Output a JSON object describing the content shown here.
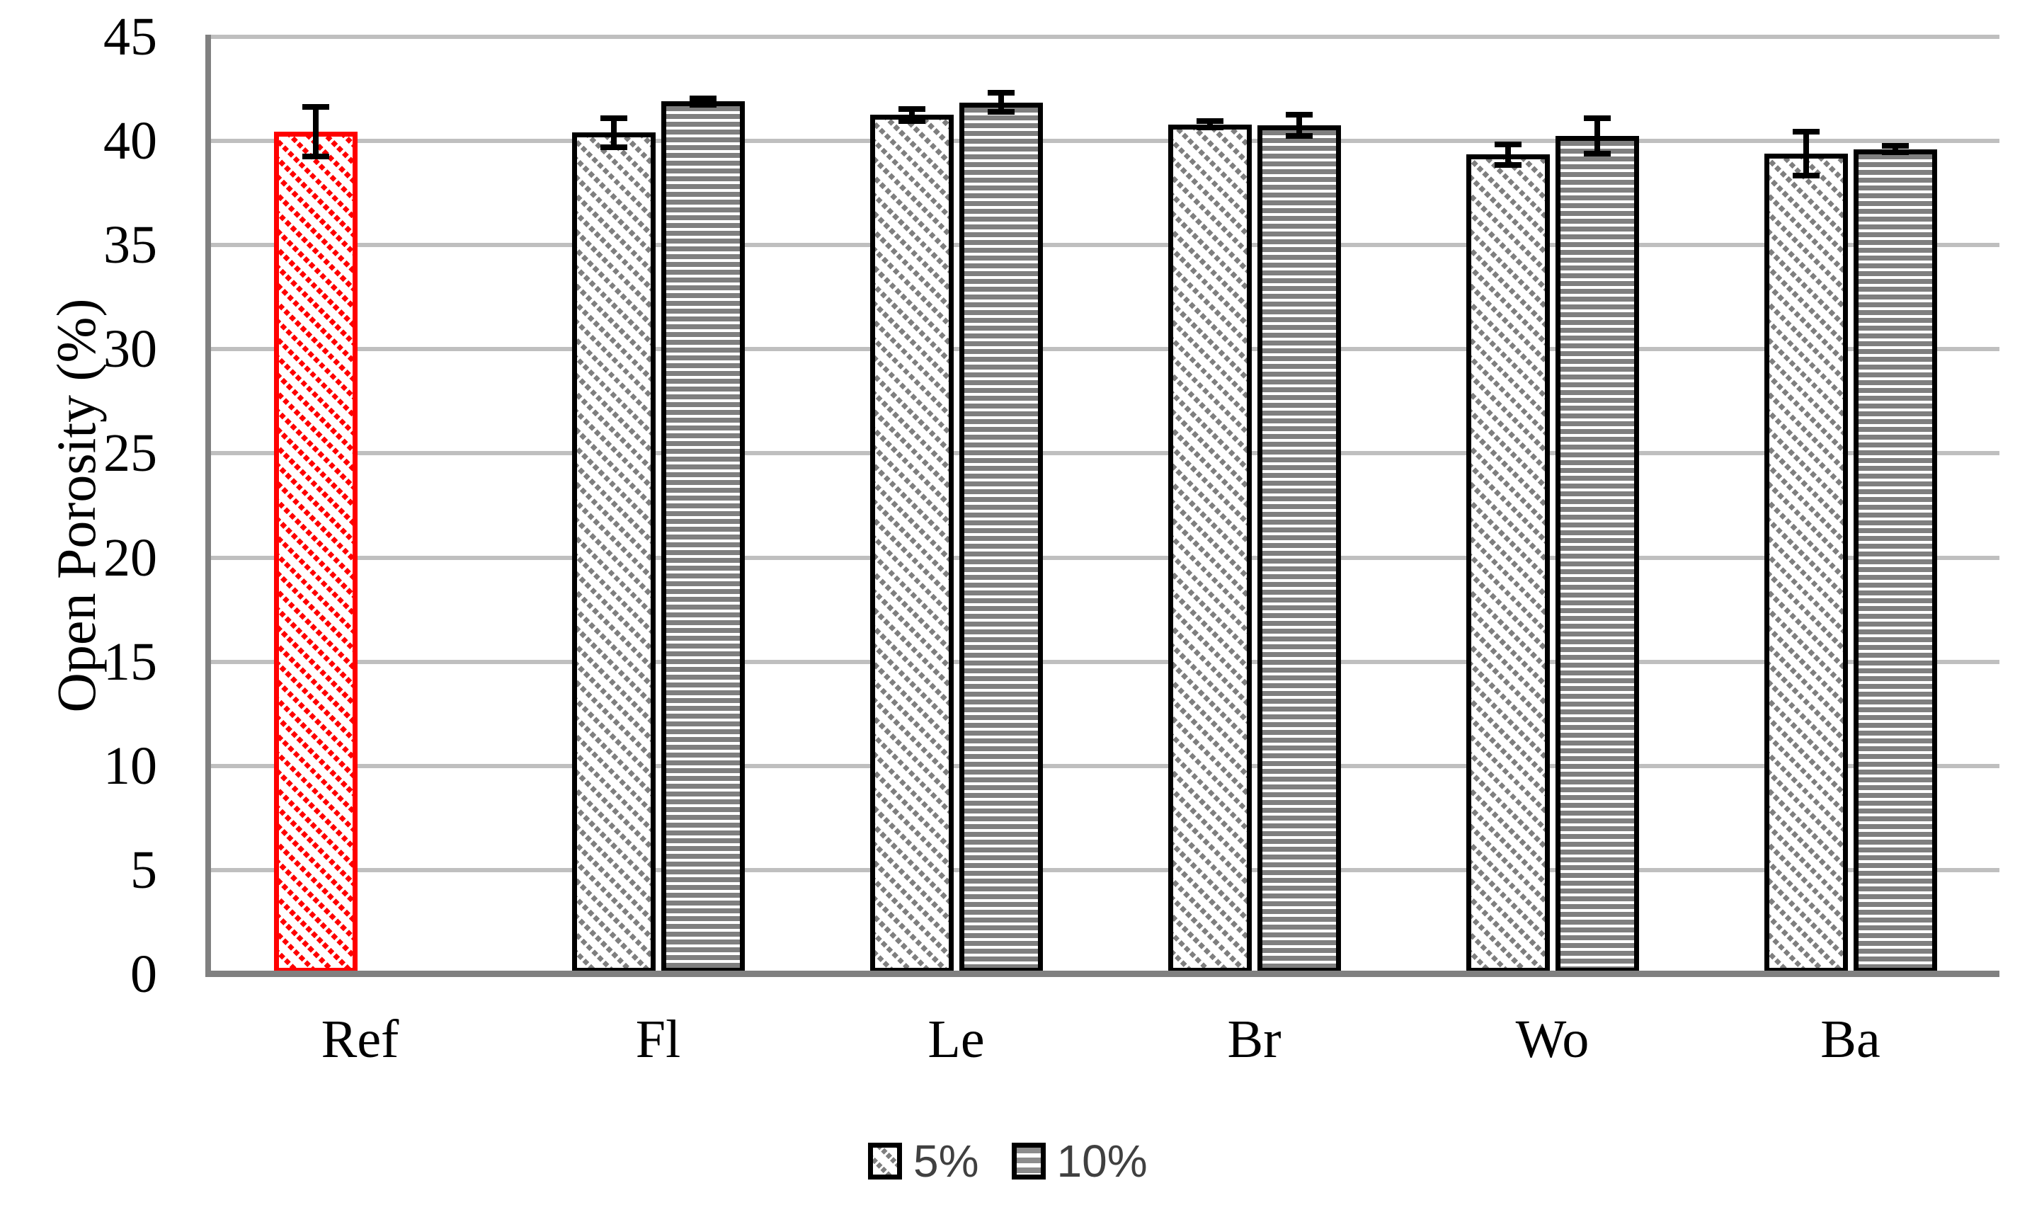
{
  "chart_data": {
    "type": "bar",
    "title": "",
    "xlabel": "",
    "ylabel": "Open Porosity (%)",
    "ylim": [
      0,
      45
    ],
    "yticks": [
      0,
      5,
      10,
      15,
      20,
      25,
      30,
      35,
      40,
      45
    ],
    "grid": true,
    "legend_position": "bottom",
    "categories": [
      "Ref",
      "Fl",
      "Le",
      "Br",
      "Wo",
      "Ba"
    ],
    "series": [
      {
        "name": "5%",
        "hatch": "diagonal-dash",
        "values": [
          40.45,
          40.4,
          41.25,
          40.8,
          39.35,
          39.4
        ],
        "errors": [
          1.2,
          0.7,
          0.3,
          0.15,
          0.5,
          1.05
        ],
        "hatch_colors": [
          "#FF0000",
          "#7F7F7F",
          "#7F7F7F",
          "#7F7F7F",
          "#7F7F7F",
          "#7F7F7F"
        ],
        "border_colors": [
          "#FF0000",
          "#000000",
          "#000000",
          "#000000",
          "#000000",
          "#000000"
        ]
      },
      {
        "name": "10%",
        "hatch": "horizontal-stripe",
        "values": [
          null,
          41.9,
          41.85,
          40.75,
          40.25,
          39.6
        ],
        "errors": [
          null,
          0.15,
          0.45,
          0.5,
          0.85,
          0.15
        ],
        "hatch_colors": [
          null,
          "#7F7F7F",
          "#7F7F7F",
          "#7F7F7F",
          "#7F7F7F",
          "#7F7F7F"
        ],
        "border_colors": [
          null,
          "#000000",
          "#000000",
          "#000000",
          "#000000",
          "#000000"
        ]
      }
    ],
    "error_bar_color": "#000000",
    "colors": {
      "gridline": "#BFBFBF",
      "axis": "#808080",
      "tick_label": "#000000",
      "legend_text": "#404040",
      "highlight_bar": "#FF0000",
      "pattern_gray": "#7F7F7F"
    }
  }
}
